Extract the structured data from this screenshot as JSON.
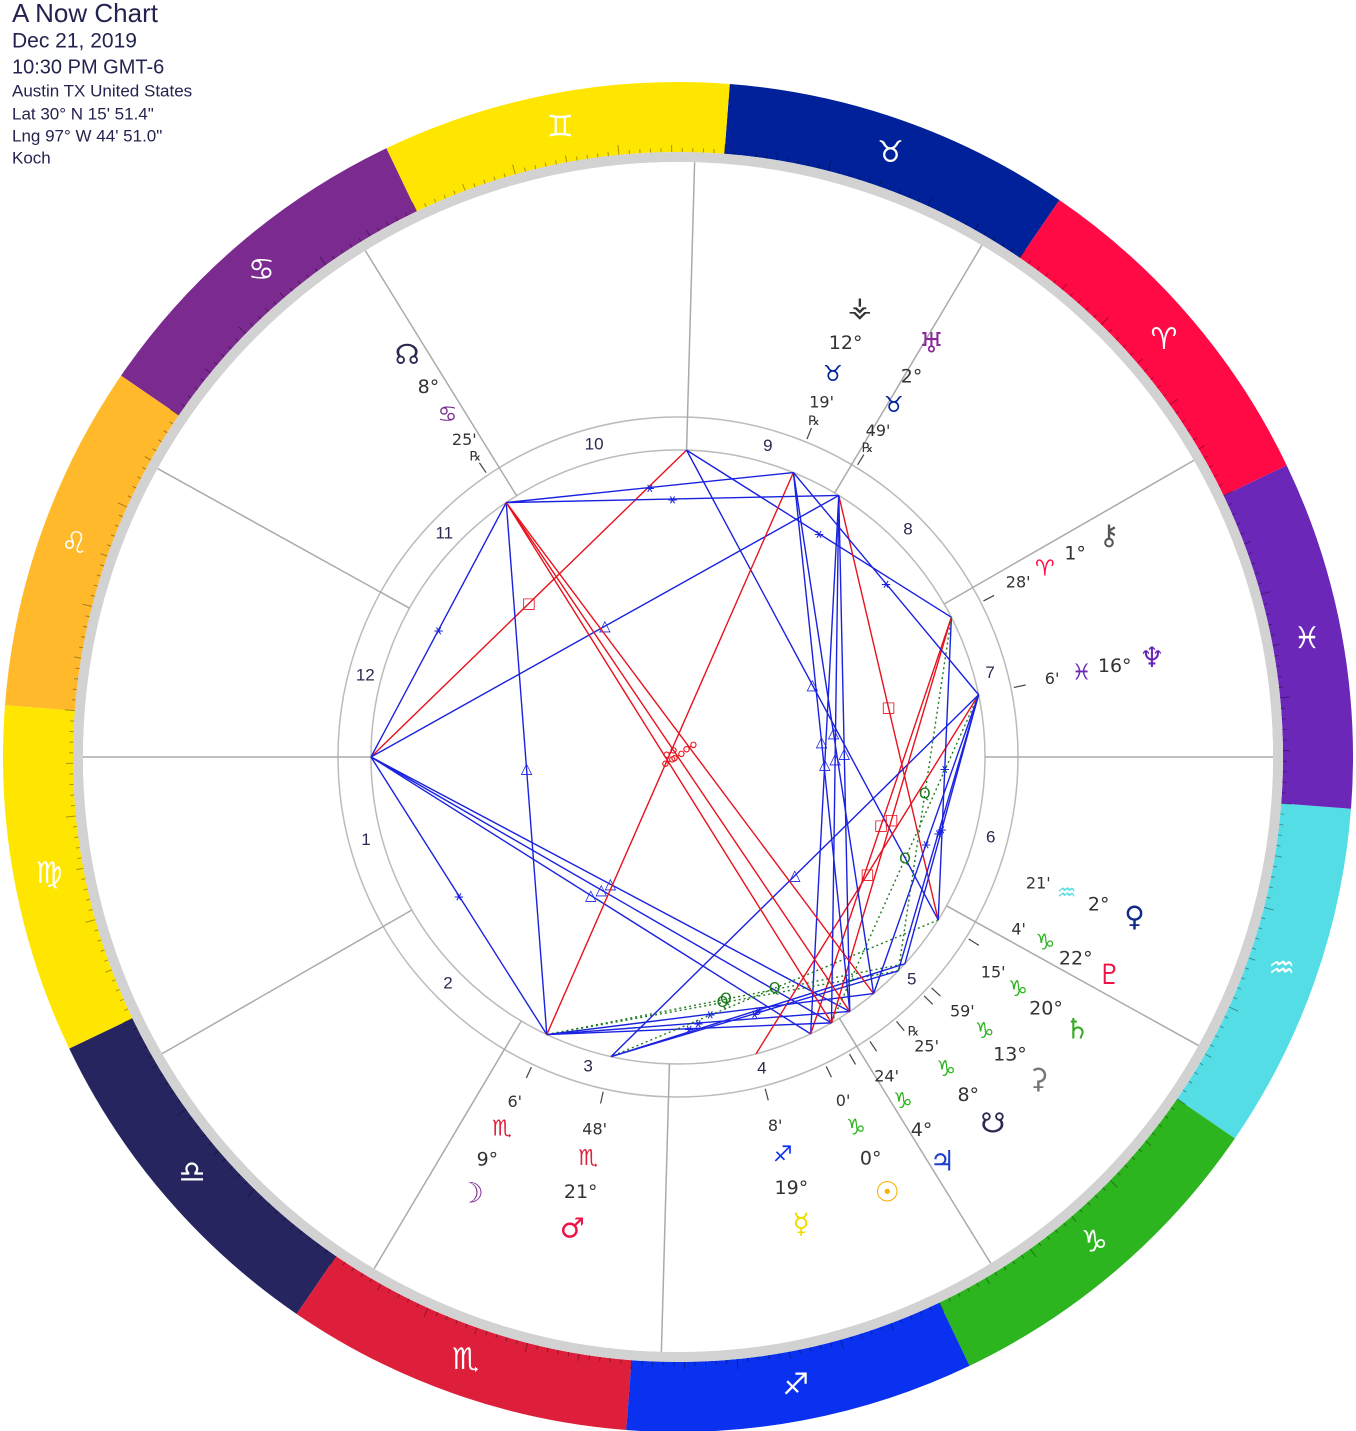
{
  "header": {
    "title": "A Now Chart",
    "date": "Dec 21, 2019",
    "time": "10:30 PM GMT-6",
    "location": "Austin TX United States",
    "latitude": "Lat 30° N 15' 51.4\"",
    "longitude": "Lng 97° W 44' 51.0\"",
    "house_system": "Koch"
  },
  "signs": [
    {
      "glyph": "♈",
      "color": "#ff0a45"
    },
    {
      "glyph": "♉",
      "color": "#00219a"
    },
    {
      "glyph": "♊",
      "color": "#ffe600"
    },
    {
      "glyph": "♋",
      "color": "#7b2a8f"
    },
    {
      "glyph": "♌",
      "color": "#ffb92a"
    },
    {
      "glyph": "♍",
      "color": "#ffe600"
    },
    {
      "glyph": "♎",
      "color": "#262560"
    },
    {
      "glyph": "♏",
      "color": "#de1f3c"
    },
    {
      "glyph": "♐",
      "color": "#0a31f0"
    },
    {
      "glyph": "♑",
      "color": "#2db51f"
    },
    {
      "glyph": "♒",
      "color": "#55dde6"
    },
    {
      "glyph": "♓",
      "color": "#6a27b8"
    }
  ],
  "houses": [
    {
      "label": "1",
      "cusp": 154.4
    },
    {
      "label": "2",
      "cusp": 184.3
    },
    {
      "label": "3",
      "cusp": 213.7
    },
    {
      "label": "4",
      "cusp": 242.8
    },
    {
      "label": "5",
      "cusp": 276.1
    },
    {
      "label": "6",
      "cusp": 305.4
    },
    {
      "label": "7",
      "cusp": 334.4
    },
    {
      "label": "8",
      "cusp": 4.3
    },
    {
      "label": "9",
      "cusp": 33.7
    },
    {
      "label": "10",
      "cusp": 62.8
    },
    {
      "label": "11",
      "cusp": 96.1
    },
    {
      "label": "12",
      "cusp": 125.4
    }
  ],
  "planets": [
    {
      "glyph": "☉",
      "color": "#f5b000",
      "sign": 9,
      "degree": "0°",
      "minute": "0'",
      "longitude": 270.0
    },
    {
      "glyph": "☽",
      "color": "#7a2a90",
      "sign": 7,
      "degree": "9°",
      "minute": "6'",
      "longitude": 219.1
    },
    {
      "glyph": "☿",
      "color": "#f0dc00",
      "sign": 8,
      "degree": "19°",
      "minute": "8'",
      "longitude": 259.13
    },
    {
      "glyph": "♀",
      "color": "#102a8a",
      "sign": 10,
      "degree": "2°",
      "minute": "21'",
      "longitude": 302.35
    },
    {
      "glyph": "♂",
      "color": "#ee1144",
      "sign": 7,
      "degree": "21°",
      "minute": "48'",
      "longitude": 231.8
    },
    {
      "glyph": "♃",
      "color": "#1f3fd0",
      "sign": 9,
      "degree": "4°",
      "minute": "24'",
      "longitude": 274.4
    },
    {
      "glyph": "♄",
      "color": "#33aa22",
      "sign": 9,
      "degree": "20°",
      "minute": "15'",
      "longitude": 290.25
    },
    {
      "glyph": "♅",
      "color": "#8a2a9a",
      "sign": 1,
      "degree": "2°",
      "minute": "49'",
      "longitude": 32.82,
      "retrograde": "℞"
    },
    {
      "glyph": "♆",
      "color": "#6a27b8",
      "sign": 11,
      "degree": "16°",
      "minute": "6'",
      "longitude": 346.1
    },
    {
      "glyph": "♇",
      "color": "#ee1144",
      "sign": 9,
      "degree": "22°",
      "minute": "4'",
      "longitude": 292.07
    },
    {
      "glyph": "☊",
      "color": "#2a2a50",
      "sign": 3,
      "degree": "8°",
      "minute": "25'",
      "longitude": 98.42,
      "retrograde": "℞"
    },
    {
      "glyph": "☋",
      "color": "#2a2a50",
      "sign": 9,
      "degree": "8°",
      "minute": "25'",
      "longitude": 278.42,
      "retrograde": "℞"
    },
    {
      "glyph": "⚷",
      "color": "#555555",
      "sign": 0,
      "degree": "1°",
      "minute": "28'",
      "longitude": 1.47
    },
    {
      "glyph": "⚳",
      "color": "#777777",
      "sign": 9,
      "degree": "13°",
      "minute": "59'",
      "longitude": 283.98
    },
    {
      "glyph": "⚶",
      "color": "#333333",
      "sign": 1,
      "degree": "12°",
      "minute": "19'",
      "longitude": 42.32,
      "retrograde": "℞"
    }
  ],
  "aspects": [
    {
      "glyph": "☍",
      "angle": 180,
      "color": "#e8121e"
    },
    {
      "glyph": "□",
      "angle": 90,
      "color": "#e8121e"
    },
    {
      "glyph": "△",
      "angle": 120,
      "color": "#1a22e0"
    },
    {
      "glyph": "⚹",
      "angle": 60,
      "color": "#1a22e0"
    },
    {
      "glyph": "Q",
      "angle": 72,
      "color": "#1e7a1e"
    }
  ]
}
